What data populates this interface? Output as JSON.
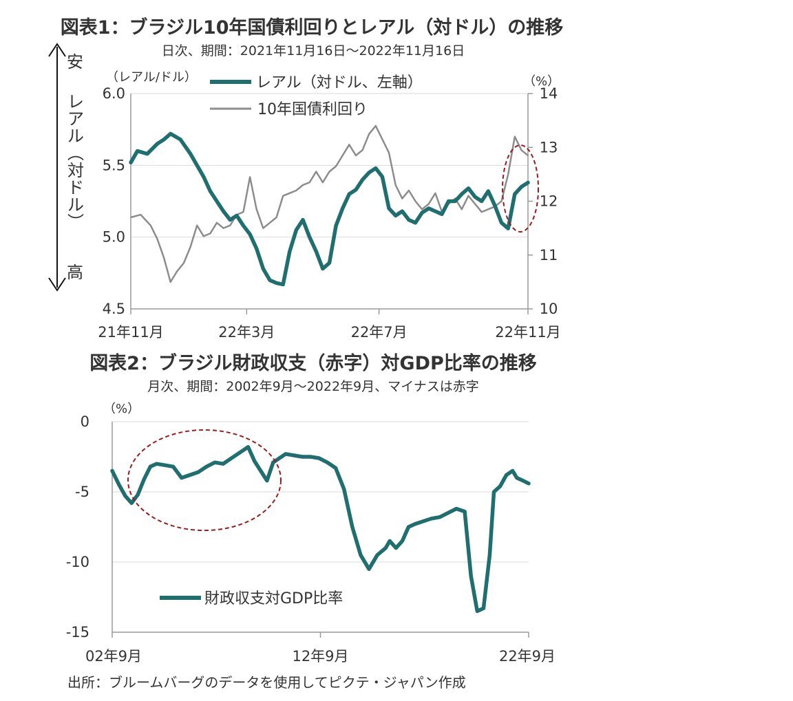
{
  "chart_data": [
    {
      "type": "line",
      "title": "図表1：ブラジル10年国債利回りとレアル（対ドル）の推移",
      "subtitle": "日次、期間：2021年11月16日～2022年11月16日",
      "left_unit": "（レアル/ドル）",
      "right_unit": "（%）",
      "side_label": {
        "top": "安",
        "middle": "レアル（対ドル）",
        "bottom": "高"
      },
      "left_axis": {
        "ylim": [
          4.5,
          6.0
        ],
        "ticks": [
          "6.0",
          "5.5",
          "5.0",
          "4.5"
        ]
      },
      "right_axis": {
        "ylim": [
          10,
          14
        ],
        "ticks": [
          "14",
          "13",
          "12",
          "11",
          "10"
        ]
      },
      "x_ticks": [
        "21年11月",
        "22年3月",
        "22年7月",
        "22年11月"
      ],
      "x_tick_positions": [
        0,
        3.5,
        7.5,
        12
      ],
      "xlim": [
        0,
        12
      ],
      "colors": {
        "brl": "#1f6e70",
        "yield": "#8c8c8c",
        "circle": "#9b1b1b"
      },
      "series": [
        {
          "name": "レアル（対ドル、左軸）",
          "axis": "left",
          "x": [
            0,
            0.2,
            0.5,
            0.8,
            1.0,
            1.2,
            1.5,
            1.8,
            2.0,
            2.2,
            2.4,
            2.6,
            2.8,
            3.0,
            3.2,
            3.4,
            3.6,
            3.8,
            4.0,
            4.2,
            4.4,
            4.6,
            4.8,
            5.0,
            5.2,
            5.4,
            5.6,
            5.8,
            6.0,
            6.2,
            6.4,
            6.6,
            6.8,
            7.0,
            7.2,
            7.4,
            7.6,
            7.8,
            8.0,
            8.2,
            8.4,
            8.6,
            8.8,
            9.0,
            9.2,
            9.4,
            9.6,
            9.8,
            10.0,
            10.2,
            10.4,
            10.6,
            10.8,
            11.0,
            11.2,
            11.4,
            11.6,
            11.8,
            12.0
          ],
          "y": [
            5.52,
            5.6,
            5.58,
            5.65,
            5.68,
            5.72,
            5.68,
            5.58,
            5.5,
            5.42,
            5.32,
            5.25,
            5.18,
            5.12,
            5.15,
            5.08,
            5.02,
            4.92,
            4.78,
            4.7,
            4.68,
            4.67,
            4.9,
            5.05,
            5.12,
            5.0,
            4.9,
            4.78,
            4.82,
            5.08,
            5.2,
            5.3,
            5.33,
            5.4,
            5.45,
            5.48,
            5.42,
            5.2,
            5.15,
            5.18,
            5.12,
            5.1,
            5.17,
            5.2,
            5.18,
            5.16,
            5.25,
            5.25,
            5.3,
            5.34,
            5.28,
            5.25,
            5.32,
            5.22,
            5.1,
            5.06,
            5.3,
            5.35,
            5.38
          ]
        },
        {
          "name": "10年国債利回り",
          "axis": "right",
          "x": [
            0,
            0.3,
            0.6,
            0.8,
            1.0,
            1.2,
            1.4,
            1.6,
            1.8,
            2.0,
            2.2,
            2.4,
            2.6,
            2.8,
            3.0,
            3.2,
            3.4,
            3.6,
            3.8,
            4.0,
            4.2,
            4.4,
            4.6,
            4.8,
            5.0,
            5.2,
            5.4,
            5.6,
            5.8,
            6.0,
            6.2,
            6.4,
            6.6,
            6.8,
            7.0,
            7.2,
            7.4,
            7.6,
            7.8,
            8.0,
            8.2,
            8.4,
            8.6,
            8.8,
            9.0,
            9.2,
            9.4,
            9.6,
            9.8,
            10.0,
            10.2,
            10.4,
            10.6,
            10.8,
            11.0,
            11.2,
            11.4,
            11.6,
            11.8,
            12.0
          ],
          "y": [
            11.7,
            11.75,
            11.55,
            11.3,
            10.95,
            10.5,
            10.7,
            10.85,
            11.15,
            11.55,
            11.35,
            11.4,
            11.6,
            11.5,
            11.55,
            11.75,
            11.8,
            12.45,
            11.85,
            11.5,
            11.6,
            11.7,
            12.1,
            12.15,
            12.2,
            12.3,
            12.35,
            12.55,
            12.35,
            12.55,
            12.65,
            12.85,
            13.05,
            12.85,
            12.95,
            13.25,
            13.4,
            13.15,
            12.9,
            12.3,
            12.05,
            12.2,
            12.0,
            11.85,
            11.95,
            12.15,
            11.8,
            11.95,
            12.05,
            11.85,
            12.1,
            11.95,
            11.8,
            11.85,
            11.9,
            12.0,
            12.5,
            13.2,
            12.95,
            12.85
          ]
        }
      ]
    },
    {
      "type": "line",
      "title": "図表2：ブラジル財政収支（赤字）対GDP比率の推移",
      "subtitle": "月次、期間：2002年9月～2022年9月、マイナスは赤字",
      "unit": "（%）",
      "ylim": [
        -15,
        0
      ],
      "y_ticks": [
        "0",
        "-5",
        "-10",
        "-15"
      ],
      "x_ticks": [
        "02年9月",
        "12年9月",
        "22年9月"
      ],
      "x_tick_positions": [
        2002.67,
        2012.67,
        2022.67
      ],
      "xlim": [
        2002.67,
        2022.67
      ],
      "colors": {
        "line": "#1f6e70",
        "circle": "#9b1b1b"
      },
      "series": [
        {
          "name": "財政収支対GDP比率",
          "x": [
            2002.67,
            2003.0,
            2003.3,
            2003.6,
            2003.9,
            2004.2,
            2004.5,
            2004.8,
            2005.2,
            2005.6,
            2006.0,
            2006.4,
            2006.8,
            2007.2,
            2007.6,
            2008.0,
            2008.4,
            2008.8,
            2009.2,
            2009.5,
            2009.8,
            2010.1,
            2010.4,
            2010.7,
            2011.0,
            2011.4,
            2011.8,
            2012.2,
            2012.6,
            2013.0,
            2013.4,
            2013.8,
            2014.2,
            2014.6,
            2015.0,
            2015.4,
            2015.8,
            2016.0,
            2016.3,
            2016.6,
            2016.9,
            2017.2,
            2017.6,
            2018.0,
            2018.4,
            2018.8,
            2019.2,
            2019.6,
            2019.9,
            2020.2,
            2020.5,
            2020.8,
            2021.0,
            2021.3,
            2021.6,
            2021.9,
            2022.1,
            2022.4,
            2022.67
          ],
          "y": [
            -3.5,
            -4.5,
            -5.3,
            -5.8,
            -5.2,
            -4.1,
            -3.2,
            -3.0,
            -3.1,
            -3.2,
            -4.0,
            -3.8,
            -3.6,
            -3.2,
            -2.9,
            -3.0,
            -2.6,
            -2.2,
            -1.8,
            -2.8,
            -3.5,
            -4.2,
            -2.9,
            -2.6,
            -2.3,
            -2.4,
            -2.5,
            -2.5,
            -2.6,
            -2.9,
            -3.3,
            -4.8,
            -7.5,
            -9.5,
            -10.5,
            -9.5,
            -9.0,
            -8.5,
            -9.0,
            -8.5,
            -7.5,
            -7.3,
            -7.1,
            -6.9,
            -6.8,
            -6.5,
            -6.2,
            -6.4,
            -11.0,
            -13.5,
            -13.3,
            -9.5,
            -5.0,
            -4.6,
            -3.8,
            -3.5,
            -4.0,
            -4.2,
            -4.4
          ]
        }
      ]
    }
  ],
  "source": "出所：ブルームバーグのデータを使用してピクテ・ジャパン作成"
}
